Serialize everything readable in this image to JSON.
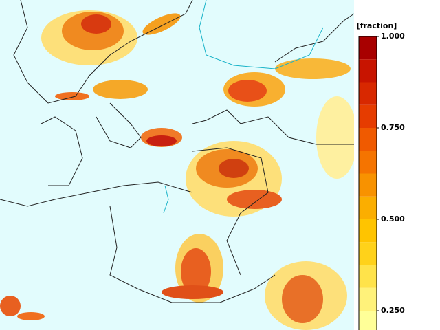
{
  "colorbar": {
    "label": "[fraction]",
    "range": [
      0.1875,
      1.0
    ],
    "levels": [
      0.1875,
      0.25,
      0.3125,
      0.375,
      0.4375,
      0.5,
      0.5625,
      0.625,
      0.6875,
      0.75,
      0.8125,
      0.875,
      0.9375,
      1.0
    ],
    "colors": [
      "#ffff98",
      "#fff27a",
      "#ffe34a",
      "#ffd21a",
      "#ffc400",
      "#fbae00",
      "#f89200",
      "#f57400",
      "#f05a00",
      "#e63c00",
      "#d82800",
      "#c81400",
      "#a80000"
    ],
    "ticks": [
      {
        "value": 1.0,
        "label": "1.000"
      },
      {
        "value": 0.75,
        "label": "0.750"
      },
      {
        "value": 0.5,
        "label": "0.500"
      },
      {
        "value": 0.25,
        "label": "0.250"
      }
    ]
  }
}
